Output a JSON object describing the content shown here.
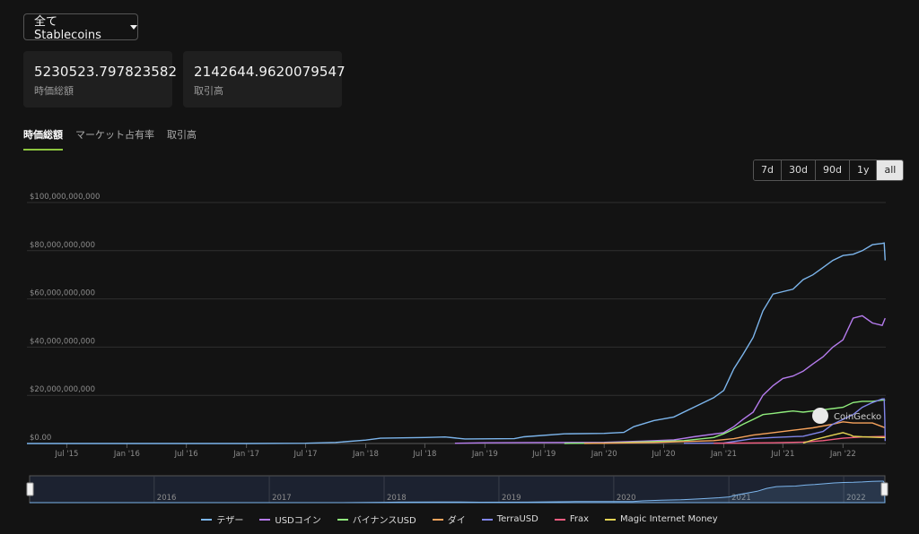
{
  "dropdown": {
    "label": "全て Stablecoins"
  },
  "stats": [
    {
      "value": "5230523.797823582",
      "label": "時価総額"
    },
    {
      "value": "2142644.9620079547",
      "label": "取引高"
    }
  ],
  "tabs": [
    "時価総額",
    "マーケット占有率",
    "取引高"
  ],
  "ranges": [
    "7d",
    "30d",
    "90d",
    "1y",
    "all"
  ],
  "watermark": "CoinGecko",
  "chart_data": {
    "type": "line",
    "y_ticks": [
      "$0.00",
      "$20,000,000,000",
      "$40,000,000,000",
      "$60,000,000,000",
      "$80,000,000,000",
      "$100,000,000,000"
    ],
    "ylim": [
      0,
      100000000000
    ],
    "x_ticks": [
      "Jul '15",
      "Jan '16",
      "Jul '16",
      "Jan '17",
      "Jul '17",
      "Jan '18",
      "Jul '18",
      "Jan '19",
      "Jul '19",
      "Jan '20",
      "Jul '20",
      "Jan '21",
      "Jul '21",
      "Jan '22"
    ],
    "xlim": [
      "2015-03-01",
      "2022-05-12"
    ],
    "navigator_ticks": [
      "2016",
      "2017",
      "2018",
      "2019",
      "2020",
      "2021",
      "2022"
    ],
    "series": [
      {
        "name": "テザー",
        "color": "#7cb5ec",
        "points": [
          [
            "2015-03-01",
            0.0003
          ],
          [
            "2017-01-01",
            0.01
          ],
          [
            "2017-07-01",
            0.1
          ],
          [
            "2017-10-01",
            0.45
          ],
          [
            "2018-01-01",
            1.4
          ],
          [
            "2018-02-15",
            2.2
          ],
          [
            "2018-07-01",
            2.5
          ],
          [
            "2018-09-01",
            2.7
          ],
          [
            "2018-11-01",
            1.9
          ],
          [
            "2019-04-01",
            2.0
          ],
          [
            "2019-05-01",
            2.8
          ],
          [
            "2019-09-01",
            4.0
          ],
          [
            "2020-01-01",
            4.2
          ],
          [
            "2020-03-01",
            4.6
          ],
          [
            "2020-04-01",
            7.0
          ],
          [
            "2020-06-01",
            9.5
          ],
          [
            "2020-08-01",
            11
          ],
          [
            "2020-10-01",
            15
          ],
          [
            "2020-12-01",
            19
          ],
          [
            "2021-01-01",
            22
          ],
          [
            "2021-02-01",
            31
          ],
          [
            "2021-03-01",
            37
          ],
          [
            "2021-04-01",
            44
          ],
          [
            "2021-05-01",
            55
          ],
          [
            "2021-06-01",
            62
          ],
          [
            "2021-07-01",
            63
          ],
          [
            "2021-08-01",
            64
          ],
          [
            "2021-09-01",
            68
          ],
          [
            "2021-10-01",
            70
          ],
          [
            "2021-11-01",
            73
          ],
          [
            "2021-12-01",
            76
          ],
          [
            "2022-01-01",
            78
          ],
          [
            "2022-02-01",
            78.5
          ],
          [
            "2022-03-01",
            80
          ],
          [
            "2022-04-01",
            82.5
          ],
          [
            "2022-05-01",
            83
          ],
          [
            "2022-05-07",
            83.2
          ],
          [
            "2022-05-10",
            76
          ]
        ]
      },
      {
        "name": "USDコイン",
        "color": "#b57bed",
        "points": [
          [
            "2018-10-01",
            0.1
          ],
          [
            "2019-01-01",
            0.3
          ],
          [
            "2019-06-01",
            0.4
          ],
          [
            "2020-01-01",
            0.5
          ],
          [
            "2020-05-01",
            1.0
          ],
          [
            "2020-08-01",
            1.5
          ],
          [
            "2020-10-01",
            2.8
          ],
          [
            "2021-01-01",
            4.5
          ],
          [
            "2021-02-01",
            7
          ],
          [
            "2021-03-01",
            10
          ],
          [
            "2021-04-01",
            13
          ],
          [
            "2021-05-01",
            20
          ],
          [
            "2021-06-01",
            24
          ],
          [
            "2021-07-01",
            27
          ],
          [
            "2021-08-01",
            28
          ],
          [
            "2021-09-01",
            30
          ],
          [
            "2021-10-01",
            33
          ],
          [
            "2021-11-01",
            36
          ],
          [
            "2021-12-01",
            40
          ],
          [
            "2022-01-01",
            43
          ],
          [
            "2022-02-01",
            52
          ],
          [
            "2022-03-01",
            53
          ],
          [
            "2022-04-01",
            50
          ],
          [
            "2022-05-01",
            49
          ],
          [
            "2022-05-10",
            52
          ]
        ]
      },
      {
        "name": "バイナンスUSD",
        "color": "#90ed7d",
        "points": [
          [
            "2019-09-01",
            0.05
          ],
          [
            "2020-01-01",
            0.2
          ],
          [
            "2020-06-01",
            0.8
          ],
          [
            "2020-09-01",
            1.2
          ],
          [
            "2020-12-01",
            2.5
          ],
          [
            "2021-01-01",
            4
          ],
          [
            "2021-02-01",
            6
          ],
          [
            "2021-03-01",
            8
          ],
          [
            "2021-04-01",
            10
          ],
          [
            "2021-05-01",
            12
          ],
          [
            "2021-06-01",
            12.5
          ],
          [
            "2021-07-01",
            13
          ],
          [
            "2021-08-01",
            13.5
          ],
          [
            "2021-09-01",
            13
          ],
          [
            "2021-10-01",
            13.5
          ],
          [
            "2021-12-01",
            14.5
          ],
          [
            "2022-01-01",
            15
          ],
          [
            "2022-02-01",
            17
          ],
          [
            "2022-03-01",
            17.5
          ],
          [
            "2022-04-01",
            17.5
          ],
          [
            "2022-05-01",
            18
          ],
          [
            "2022-05-10",
            18
          ]
        ]
      },
      {
        "name": "ダイ",
        "color": "#f7a35c",
        "points": [
          [
            "2019-11-01",
            0.05
          ],
          [
            "2020-01-01",
            0.1
          ],
          [
            "2020-06-01",
            0.4
          ],
          [
            "2020-09-01",
            0.8
          ],
          [
            "2020-12-01",
            1.2
          ],
          [
            "2021-02-01",
            2.0
          ],
          [
            "2021-04-01",
            3.5
          ],
          [
            "2021-06-01",
            4.5
          ],
          [
            "2021-08-01",
            5.5
          ],
          [
            "2021-10-01",
            6.5
          ],
          [
            "2021-12-01",
            8
          ],
          [
            "2022-01-01",
            9
          ],
          [
            "2022-02-01",
            8.5
          ],
          [
            "2022-03-01",
            8.5
          ],
          [
            "2022-04-01",
            8.5
          ],
          [
            "2022-05-01",
            7
          ],
          [
            "2022-05-10",
            6.5
          ]
        ]
      },
      {
        "name": "TerraUSD",
        "color": "#8085e9",
        "points": [
          [
            "2020-09-01",
            0.1
          ],
          [
            "2021-01-01",
            0.2
          ],
          [
            "2021-04-01",
            2.0
          ],
          [
            "2021-06-01",
            2.5
          ],
          [
            "2021-09-01",
            3.0
          ],
          [
            "2021-11-01",
            5
          ],
          [
            "2021-12-01",
            8
          ],
          [
            "2022-01-01",
            10
          ],
          [
            "2022-02-01",
            12
          ],
          [
            "2022-03-01",
            15
          ],
          [
            "2022-04-01",
            17
          ],
          [
            "2022-05-01",
            18.5
          ],
          [
            "2022-05-07",
            18.5
          ],
          [
            "2022-05-09",
            10
          ],
          [
            "2022-05-10",
            1
          ]
        ]
      },
      {
        "name": "Frax",
        "color": "#f15c80",
        "points": [
          [
            "2020-12-01",
            0.1
          ],
          [
            "2021-03-01",
            0.2
          ],
          [
            "2021-06-01",
            0.3
          ],
          [
            "2021-09-01",
            0.6
          ],
          [
            "2021-11-01",
            1.2
          ],
          [
            "2022-01-01",
            2.2
          ],
          [
            "2022-03-01",
            2.7
          ],
          [
            "2022-05-01",
            2.9
          ],
          [
            "2022-05-10",
            2.9
          ]
        ]
      },
      {
        "name": "Magic Internet Money",
        "color": "#e4d354",
        "points": [
          [
            "2021-09-01",
            0.2
          ],
          [
            "2021-10-01",
            1.5
          ],
          [
            "2021-11-01",
            2.5
          ],
          [
            "2021-12-01",
            3.5
          ],
          [
            "2022-01-01",
            4.5
          ],
          [
            "2022-01-25",
            3.5
          ],
          [
            "2022-02-01",
            3.0
          ],
          [
            "2022-03-01",
            2.8
          ],
          [
            "2022-05-01",
            2.5
          ],
          [
            "2022-05-10",
            2.5
          ]
        ]
      }
    ]
  }
}
